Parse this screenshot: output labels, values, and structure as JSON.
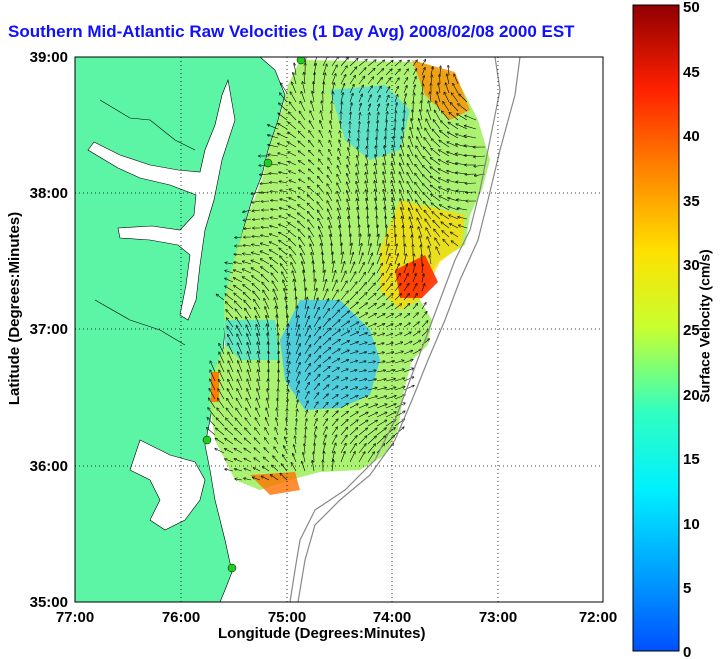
{
  "title": "Southern Mid-Atlantic Raw Velocities (1 Day Avg) 2008/02/08 2000 EST",
  "x_axis": {
    "label": "Longitude (Degrees:Minutes)",
    "ticks": [
      "77:00",
      "76:00",
      "75:00",
      "74:00",
      "73:00",
      "72:00"
    ]
  },
  "y_axis": {
    "label": "Latitude (Degrees:Minutes)",
    "ticks": [
      "39:00",
      "38:00",
      "37:00",
      "36:00",
      "35:00"
    ]
  },
  "colorbar": {
    "label": "Surface Velocity (cm/s)",
    "ticks": [
      "50",
      "45",
      "40",
      "35",
      "30",
      "25",
      "20",
      "15",
      "10",
      "5",
      "0"
    ],
    "min": 0,
    "max": 50,
    "colormap": "jet"
  },
  "map": {
    "lon_range": [
      -77,
      -72
    ],
    "lat_range": [
      35,
      39
    ],
    "land_color": "#5cf5a5",
    "grid": "dotted",
    "station_marker_color": "#22cc22"
  }
}
